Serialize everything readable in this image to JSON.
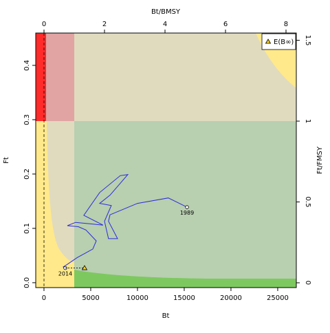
{
  "chart_data": {
    "type": "line",
    "x_label": "Bt",
    "y_label": "Ft",
    "x2_label": "Bt/BMSY",
    "y2_label": "Ft/FMSY",
    "xlim": [
      -880,
      26990
    ],
    "ylim": [
      -0.009,
      0.4595
    ],
    "x2lim": [
      -0.273,
      8.341
    ],
    "y2lim": [
      -0.0298,
      1.545
    ],
    "xticks": [
      0,
      5000,
      10000,
      15000,
      20000,
      25000
    ],
    "yticks": [
      {
        "value": 0,
        "label": "0.0"
      },
      0.1,
      0.2,
      0.3,
      0.4
    ],
    "x2ticks": [
      0,
      2,
      4,
      6,
      8
    ],
    "y2ticks": [
      0,
      0.5,
      1,
      1.5
    ],
    "series": [
      {
        "color": "#2b2bdc",
        "x": [
          15300,
          13300,
          10000,
          7060,
          6900,
          7870,
          6900,
          6470,
          7200,
          5960,
          7060,
          8970,
          8160,
          5960,
          4260,
          6320,
          3380,
          2500,
          3680,
          4490,
          5590,
          5220,
          3530,
          2430,
          2060,
          2280
        ],
        "values": [
          0.139,
          0.156,
          0.146,
          0.125,
          0.113,
          0.081,
          0.081,
          0.113,
          0.142,
          0.146,
          0.161,
          0.199,
          0.197,
          0.166,
          0.124,
          0.106,
          0.111,
          0.105,
          0.103,
          0.097,
          0.077,
          0.062,
          0.046,
          0.033,
          0.029,
          0.027
        ],
        "labels": [
          "1989",
          null,
          null,
          null,
          null,
          null,
          null,
          null,
          null,
          null,
          null,
          null,
          null,
          null,
          null,
          null,
          null,
          null,
          null,
          null,
          null,
          null,
          null,
          null,
          null,
          "2014"
        ]
      }
    ],
    "projection": {
      "name": "E(B∞)",
      "x": 4340,
      "y": 0.027,
      "color": "#f5d020"
    },
    "legend": "top-right"
  }
}
